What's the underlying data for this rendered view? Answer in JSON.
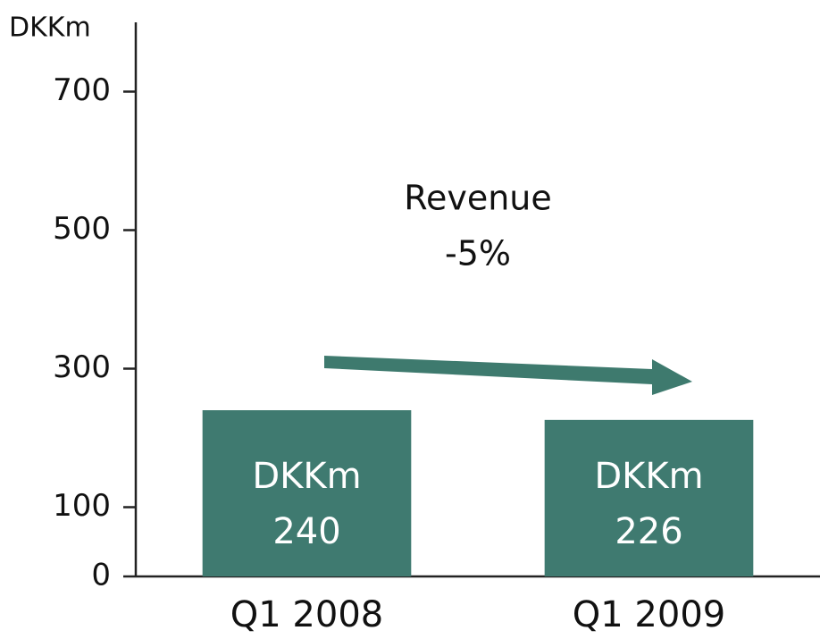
{
  "chart_data": {
    "type": "bar",
    "y_label": "DKKm",
    "categories": [
      "Q1 2008",
      "Q1 2009"
    ],
    "values": [
      240,
      226
    ],
    "value_labels": [
      "DKKm 240",
      "DKKm 226"
    ],
    "color": "#3f7a70",
    "ylim": [
      0,
      800
    ],
    "yticks": [
      0,
      100,
      300,
      500,
      700
    ],
    "annotation": [
      "Revenue",
      "-5%"
    ]
  }
}
